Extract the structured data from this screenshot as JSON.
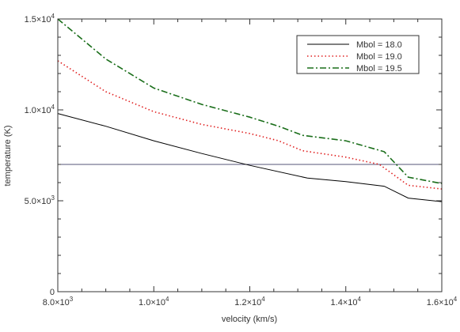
{
  "chart_data": {
    "type": "line",
    "xlabel": "velocity (km/s)",
    "ylabel": "temperature (K)",
    "xlim": [
      8000,
      16000
    ],
    "ylim": [
      0,
      15000
    ],
    "x_ticks": [
      {
        "value": 8000,
        "mantissa": "8.0",
        "exp": "3"
      },
      {
        "value": 10000,
        "mantissa": "1.0",
        "exp": "4"
      },
      {
        "value": 12000,
        "mantissa": "1.2",
        "exp": "4"
      },
      {
        "value": 14000,
        "mantissa": "1.4",
        "exp": "4"
      },
      {
        "value": 16000,
        "mantissa": "1.6",
        "exp": "4"
      }
    ],
    "y_ticks": [
      {
        "value": 0,
        "mantissa": "0",
        "exp": ""
      },
      {
        "value": 5000,
        "mantissa": "5.0",
        "exp": "3"
      },
      {
        "value": 10000,
        "mantissa": "1.0",
        "exp": "4"
      },
      {
        "value": 15000,
        "mantissa": "1.5",
        "exp": "4"
      }
    ],
    "legend_position": "top-right",
    "reference_line": {
      "y": 7000,
      "color": "#555577"
    },
    "series": [
      {
        "name": "Mbol = 18.0",
        "color": "#000000",
        "dash": "solid",
        "x": [
          8000,
          9000,
          10000,
          11000,
          12000,
          13200,
          14000,
          14800,
          15300,
          16000
        ],
        "y": [
          9800,
          9100,
          8300,
          7600,
          6950,
          6250,
          6050,
          5800,
          5150,
          4950
        ]
      },
      {
        "name": "Mbol = 19.0",
        "color": "#e02020",
        "dash": "dotted",
        "x": [
          8000,
          9000,
          10000,
          11000,
          12000,
          12600,
          13100,
          14000,
          14700,
          15300,
          16000
        ],
        "y": [
          12700,
          11000,
          9900,
          9200,
          8700,
          8300,
          7750,
          7400,
          7000,
          5850,
          5650
        ]
      },
      {
        "name": "Mbol = 19.5",
        "color": "#1a6e1a",
        "dash": "dashdot",
        "x": [
          8000,
          9000,
          10000,
          11000,
          12000,
          12600,
          13100,
          14000,
          14800,
          15300,
          16000
        ],
        "y": [
          15000,
          12800,
          11200,
          10300,
          9600,
          9100,
          8600,
          8300,
          7700,
          6300,
          5950
        ]
      }
    ]
  }
}
